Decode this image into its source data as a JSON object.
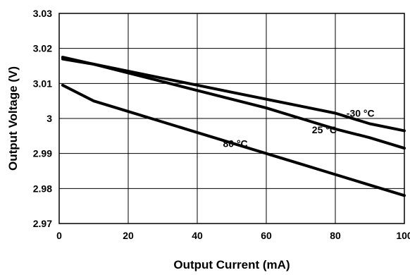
{
  "chart_data": {
    "type": "line",
    "title": "",
    "xlabel": "Output Current (mA)",
    "ylabel": "Output Voltage (V)",
    "xlim": [
      0,
      100
    ],
    "ylim": [
      2.97,
      3.03
    ],
    "x_ticks": [
      "0",
      "20",
      "40",
      "60",
      "80",
      "100"
    ],
    "y_ticks": [
      "2.97",
      "2.98",
      "2.99",
      "3",
      "3.01",
      "3.02",
      "3.03"
    ],
    "grid": true,
    "line_color": "#000000",
    "series": [
      {
        "name": "-30 °C",
        "x": [
          1,
          10,
          20,
          30,
          40,
          50,
          60,
          70,
          80,
          90,
          100
        ],
        "y": [
          3.0175,
          3.0155,
          3.0135,
          3.0115,
          3.0095,
          3.0075,
          3.0055,
          3.0035,
          3.0015,
          2.9985,
          2.9965
        ]
      },
      {
        "name": "25 °C",
        "x": [
          1,
          10,
          20,
          30,
          40,
          50,
          60,
          70,
          80,
          90,
          100
        ],
        "y": [
          3.017,
          3.0155,
          3.013,
          3.0105,
          3.008,
          3.0055,
          3.003,
          3.0,
          2.997,
          2.9945,
          2.9915
        ]
      },
      {
        "name": "80 °C",
        "x": [
          1,
          10,
          20,
          30,
          40,
          50,
          60,
          70,
          80,
          90,
          100
        ],
        "y": [
          3.0095,
          3.005,
          3.002,
          2.999,
          2.996,
          2.993,
          2.99,
          2.987,
          2.984,
          2.981,
          2.978
        ]
      }
    ]
  }
}
